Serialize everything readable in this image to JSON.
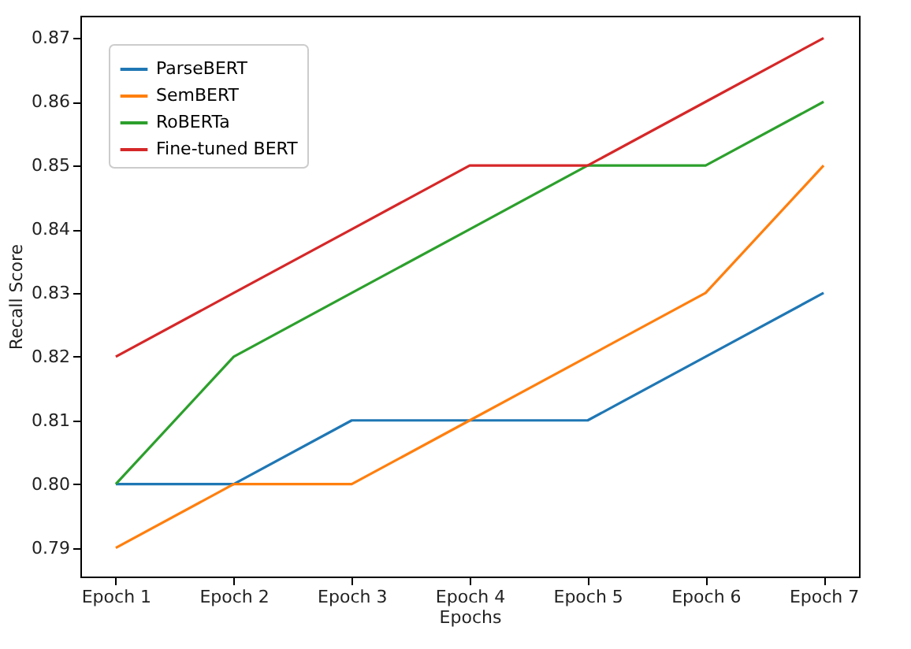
{
  "chart_data": {
    "type": "line",
    "xlabel": "Epochs",
    "ylabel": "Recall Score",
    "categories": [
      "Epoch 1",
      "Epoch 2",
      "Epoch 3",
      "Epoch 4",
      "Epoch 5",
      "Epoch 6",
      "Epoch 7"
    ],
    "series": [
      {
        "name": "ParseBERT",
        "color": "#1f77b4",
        "values": [
          0.8,
          0.8,
          0.81,
          0.81,
          0.81,
          0.82,
          0.83
        ]
      },
      {
        "name": "SemBERT",
        "color": "#ff7f0e",
        "values": [
          0.79,
          0.8,
          0.8,
          0.81,
          0.82,
          0.83,
          0.85
        ]
      },
      {
        "name": "RoBERTa",
        "color": "#2ca02c",
        "values": [
          0.8,
          0.82,
          0.83,
          0.84,
          0.85,
          0.85,
          0.86
        ]
      },
      {
        "name": "Fine-tuned BERT",
        "color": "#d62728",
        "values": [
          0.82,
          0.83,
          0.84,
          0.85,
          0.85,
          0.86,
          0.87
        ]
      }
    ],
    "ylim": [
      0.7855,
      0.8735
    ],
    "yticks": [
      0.79,
      {
        "value": 0.8,
        "label": "0.80"
      },
      0.81,
      0.82,
      0.83,
      0.84,
      0.85,
      0.86,
      0.87
    ],
    "grid": false,
    "legend": "top left",
    "line_style": "solid",
    "marker": "none"
  }
}
